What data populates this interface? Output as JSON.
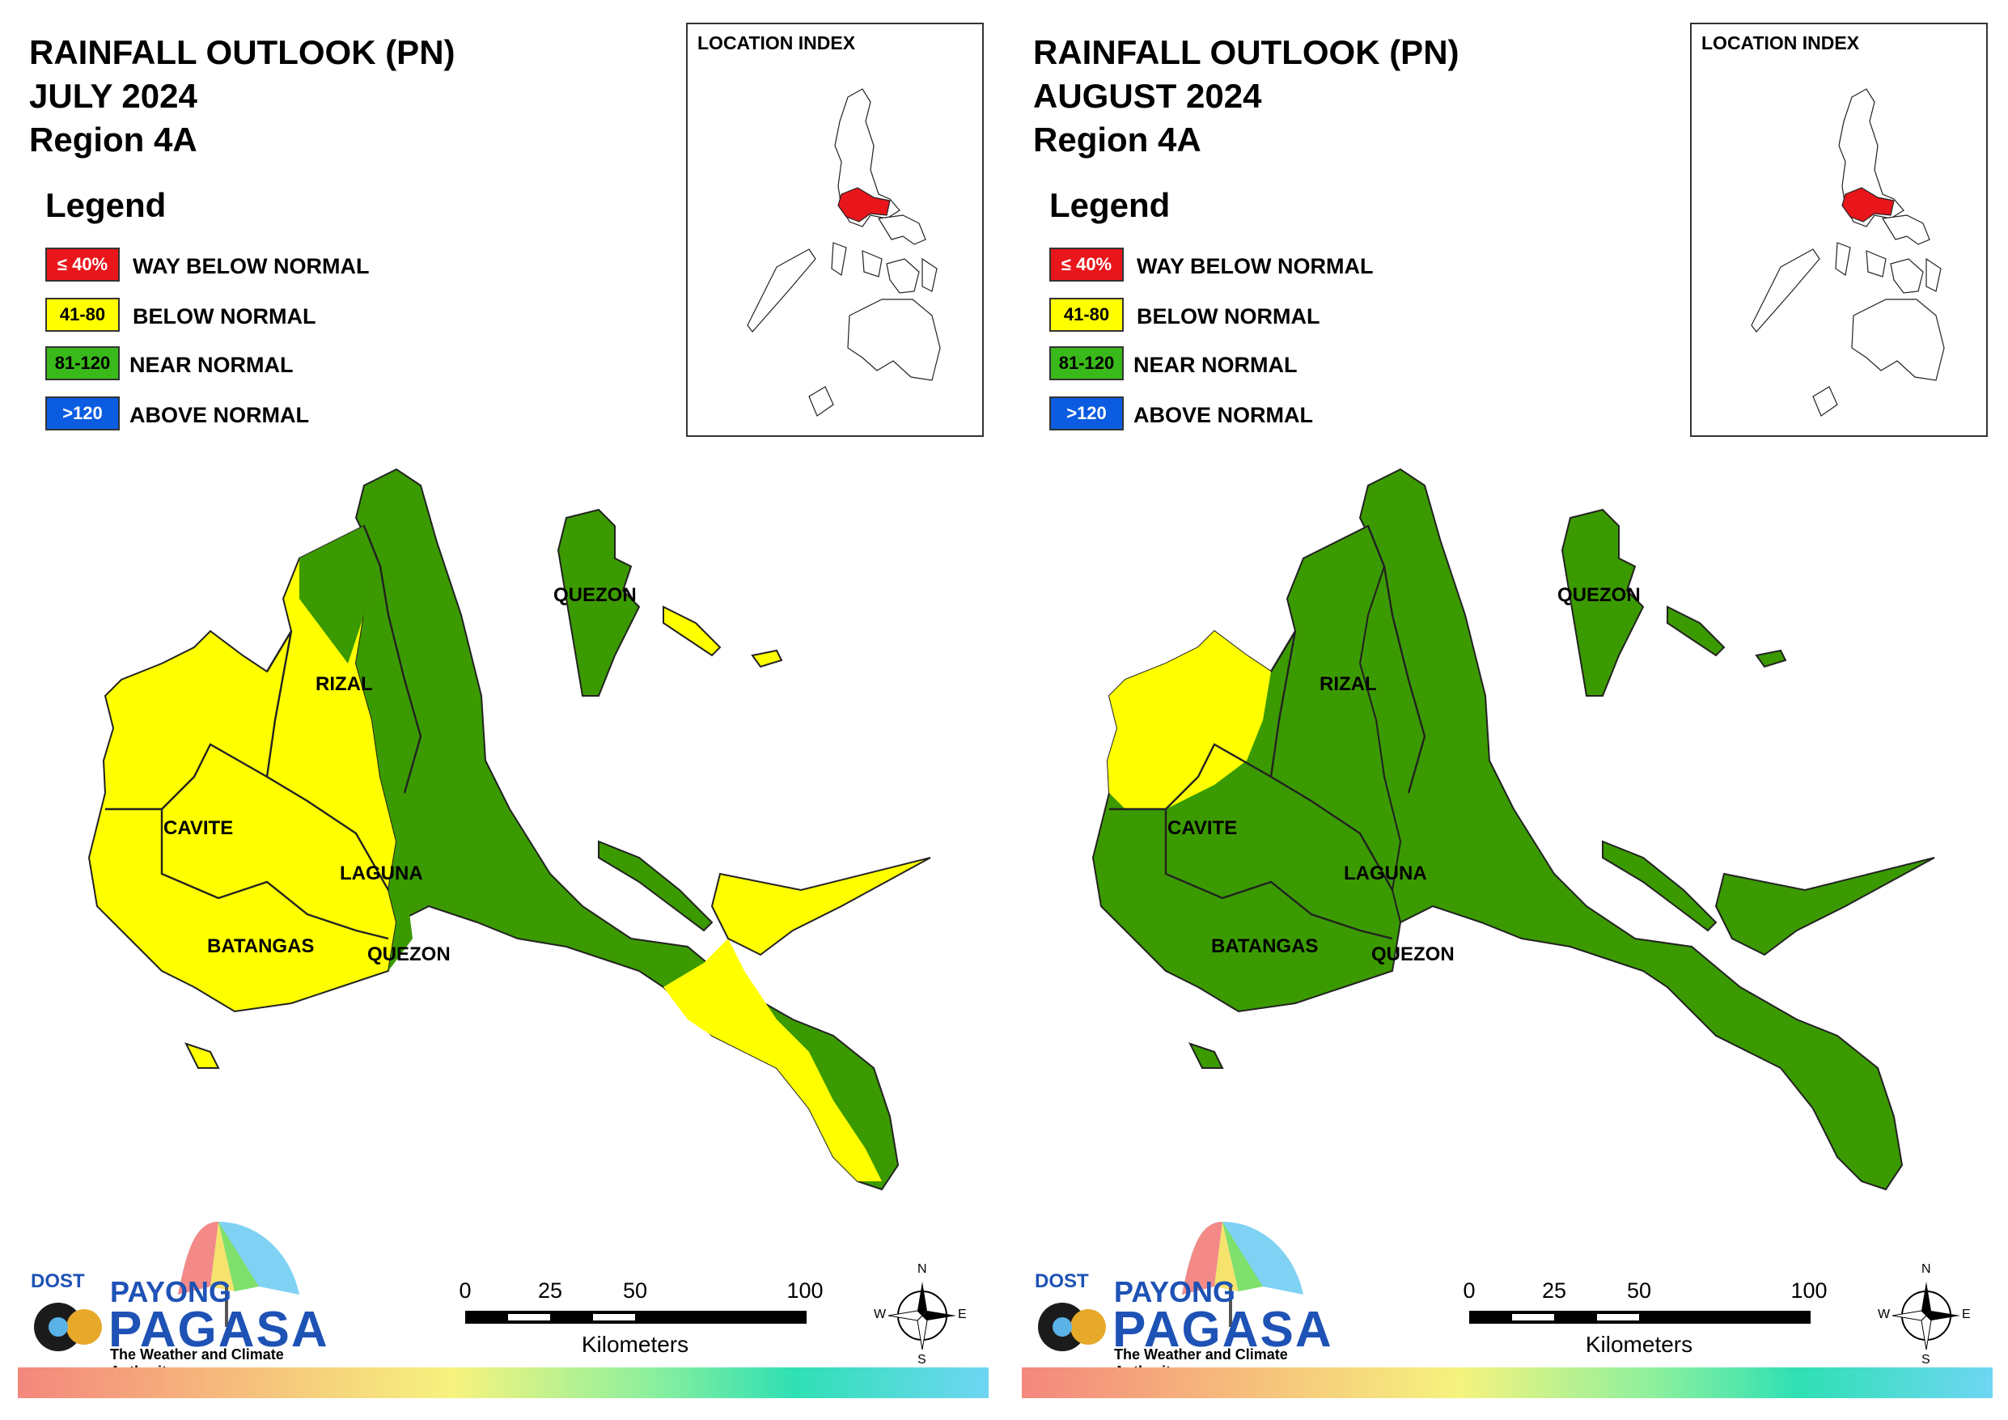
{
  "panels": [
    {
      "title_line1": "RAINFALL OUTLOOK (PN)",
      "title_line2": "JULY 2024",
      "title_line3": "Region 4A",
      "legend": {
        "title": "Legend",
        "items": [
          {
            "swatch": "≤ 40%",
            "label": "WAY BELOW NORMAL",
            "color": "#e8161b"
          },
          {
            "swatch": "41-80",
            "label": "BELOW NORMAL",
            "color": "#ffff00"
          },
          {
            "swatch": "81-120",
            "label": "NEAR NORMAL",
            "color": "#39b91a"
          },
          {
            "swatch": ">120",
            "label": "ABOVE NORMAL",
            "color": "#0b5ce0"
          }
        ]
      },
      "location_index": "LOCATION INDEX",
      "region_labels": [
        "QUEZON",
        "RIZAL",
        "CAVITE",
        "LAGUNA",
        "BATANGAS",
        "QUEZON"
      ],
      "logo": {
        "dost": "DOST",
        "payong": "PAYONG",
        "pagasa": "PAGASA",
        "tagline": "The Weather and Climate Authority"
      },
      "scale": {
        "ticks": [
          "0",
          "25",
          "50",
          "100"
        ],
        "unit": "Kilometers"
      },
      "compass": {
        "n": "N",
        "e": "E",
        "s": "S",
        "w": "W"
      }
    },
    {
      "title_line1": "RAINFALL OUTLOOK (PN)",
      "title_line2": "AUGUST 2024",
      "title_line3": "Region 4A",
      "legend": {
        "title": "Legend",
        "items": [
          {
            "swatch": "≤ 40%",
            "label": "WAY BELOW NORMAL",
            "color": "#e8161b"
          },
          {
            "swatch": "41-80",
            "label": "BELOW NORMAL",
            "color": "#ffff00"
          },
          {
            "swatch": "81-120",
            "label": "NEAR NORMAL",
            "color": "#39b91a"
          },
          {
            "swatch": ">120",
            "label": "ABOVE NORMAL",
            "color": "#0b5ce0"
          }
        ]
      },
      "location_index": "LOCATION INDEX",
      "region_labels": [
        "QUEZON",
        "RIZAL",
        "CAVITE",
        "LAGUNA",
        "BATANGAS",
        "QUEZON"
      ],
      "logo": {
        "dost": "DOST",
        "payong": "PAYONG",
        "pagasa": "PAGASA",
        "tagline": "The Weather and Climate Authority"
      },
      "scale": {
        "ticks": [
          "0",
          "25",
          "50",
          "100"
        ],
        "unit": "Kilometers"
      },
      "compass": {
        "n": "N",
        "e": "E",
        "s": "S",
        "w": "W"
      }
    }
  ],
  "colors": {
    "green": "#3b9a00",
    "yellow": "#ffff00",
    "red": "#e8161b"
  }
}
